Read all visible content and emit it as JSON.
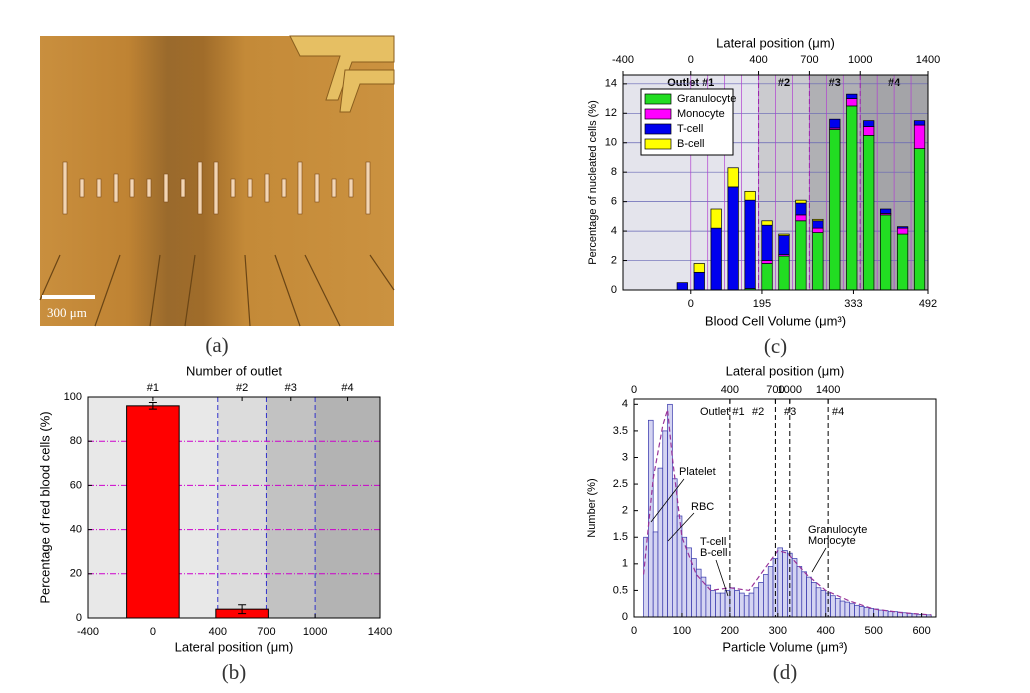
{
  "micrograph": {
    "scale_bar": "300 μm",
    "caption": "(a)"
  },
  "chart_data": [
    {
      "type": "bar",
      "caption": "(b)",
      "xlabel": "Lateral position (μm)",
      "ylabel": "Percentage of red blood cells (%)",
      "x2label": "Number of outlet",
      "x": [
        0,
        550
      ],
      "values": [
        96,
        4
      ],
      "errors": [
        1.5,
        2
      ],
      "color": "#ff0000",
      "xlim": [
        -400,
        1400
      ],
      "xticks": [
        -400,
        0,
        400,
        700,
        1000,
        1400
      ],
      "ylim": [
        0,
        100
      ],
      "yticks": [
        0,
        20,
        40,
        60,
        80,
        100
      ],
      "x2ticks": [
        {
          "value": 0,
          "label": "#1"
        },
        {
          "value": 550,
          "label": "#2"
        },
        {
          "value": 850,
          "label": "#3"
        },
        {
          "value": 1200,
          "label": "#4"
        }
      ],
      "regions": [
        {
          "from": -400,
          "to": 400,
          "color": "#e8e8e8"
        },
        {
          "from": 400,
          "to": 700,
          "color": "#dcdcdc"
        },
        {
          "from": 700,
          "to": 1000,
          "color": "#c2c2c2"
        },
        {
          "from": 1000,
          "to": 1400,
          "color": "#b3b3b3"
        }
      ],
      "grid": true
    },
    {
      "type": "stacked_bar",
      "caption": "(c)",
      "xlabel": "Blood Cell Volume (μm³)",
      "ylabel": "Percentage of nucleated cells (%)",
      "x2label": "Lateral position (μm)",
      "x": [
        -50,
        50,
        150,
        250,
        350,
        450,
        550,
        650,
        750,
        850,
        950,
        1050,
        1150,
        1250,
        1350
      ],
      "series": [
        {
          "name": "Granulocyte",
          "color": "#22dd22",
          "values": [
            0,
            0,
            0,
            0,
            0.1,
            1.8,
            2.3,
            4.7,
            3.9,
            10.9,
            12.5,
            10.5,
            5.1,
            3.8,
            9.6
          ]
        },
        {
          "name": "Monocyte",
          "color": "#ff00ff",
          "values": [
            0,
            0,
            0,
            0,
            0,
            0.2,
            0.1,
            0.4,
            0.3,
            0.1,
            0.5,
            0.6,
            0.1,
            0.4,
            1.6
          ]
        },
        {
          "name": "T-cell",
          "color": "#0000ee",
          "values": [
            0.5,
            1.2,
            4.2,
            7.0,
            6.0,
            2.4,
            1.3,
            0.8,
            0.5,
            0.6,
            0.3,
            0.4,
            0.3,
            0.1,
            0.3
          ]
        },
        {
          "name": "B-cell",
          "color": "#ffff00",
          "values": [
            0,
            0.6,
            1.3,
            1.3,
            0.6,
            0.3,
            0.1,
            0.2,
            0.1,
            0,
            0,
            0,
            0,
            0,
            0
          ]
        }
      ],
      "ylim": [
        0,
        14.6
      ],
      "yticks": [
        0,
        2,
        4,
        6,
        8,
        10,
        12,
        14
      ],
      "x2lim": [
        -400,
        1400
      ],
      "x2ticks": [
        -400,
        0,
        400,
        700,
        1000,
        1400
      ],
      "volume_ticks": [
        {
          "volume": 0,
          "lateral": 0
        },
        {
          "volume": 195,
          "lateral": 420
        },
        {
          "volume": 333,
          "lateral": 960
        },
        {
          "volume": 492,
          "lateral": 1400
        }
      ],
      "regions": [
        {
          "from": -400,
          "to": 400,
          "color": "#e4e4ec",
          "label": "Outlet #1"
        },
        {
          "from": 400,
          "to": 700,
          "color": "#cbcbcf",
          "label": "#2"
        },
        {
          "from": 700,
          "to": 1000,
          "color": "#b0b0b4",
          "label": "#3"
        },
        {
          "from": 1000,
          "to": 1400,
          "color": "#a4a4a8",
          "label": "#4"
        }
      ],
      "legend": "upper left",
      "grid": true
    },
    {
      "type": "histogram",
      "caption": "(d)",
      "xlabel": "Particle Volume (μm³)",
      "ylabel": "Number (%)",
      "x2label": "Lateral position (μm)",
      "bins": [
        20,
        30,
        40,
        50,
        60,
        70,
        80,
        90,
        100,
        110,
        120,
        130,
        140,
        150,
        160,
        170,
        180,
        190,
        200,
        210,
        220,
        230,
        240,
        250,
        260,
        270,
        280,
        290,
        300,
        310,
        320,
        330,
        340,
        350,
        360,
        370,
        380,
        390,
        400,
        410,
        420,
        430,
        440,
        450,
        460,
        470,
        480,
        490,
        500,
        510,
        520,
        530,
        540,
        550,
        560,
        570,
        580,
        590,
        600,
        610,
        620
      ],
      "counts": [
        1.5,
        3.7,
        1.6,
        2.8,
        3.5,
        4.0,
        2.6,
        1.9,
        1.5,
        1.3,
        1.1,
        0.9,
        0.75,
        0.6,
        0.5,
        0.45,
        0.45,
        0.5,
        0.55,
        0.5,
        0.45,
        0.4,
        0.45,
        0.55,
        0.65,
        0.8,
        0.95,
        1.1,
        1.3,
        1.25,
        1.2,
        1.1,
        0.95,
        0.85,
        0.75,
        0.65,
        0.55,
        0.5,
        0.45,
        0.4,
        0.35,
        0.3,
        0.28,
        0.25,
        0.22,
        0.2,
        0.18,
        0.16,
        0.15,
        0.13,
        0.12,
        0.1,
        0.1,
        0.09,
        0.08,
        0.07,
        0.06,
        0.05,
        0.05,
        0.04
      ],
      "color": "#3333aa",
      "fit": {
        "x": [
          20,
          40,
          60,
          70,
          80,
          100,
          130,
          160,
          200,
          240,
          280,
          300,
          320,
          360,
          400,
          450,
          500,
          560,
          620
        ],
        "values": [
          0.8,
          2.6,
          3.6,
          3.9,
          3.0,
          1.5,
          0.8,
          0.5,
          0.55,
          0.5,
          1.0,
          1.25,
          1.2,
          0.8,
          0.5,
          0.3,
          0.15,
          0.08,
          0.04
        ],
        "color": "#993399"
      },
      "xlim": [
        0,
        630
      ],
      "xticks": [
        0,
        100,
        200,
        300,
        400,
        500,
        600
      ],
      "ylim": [
        0,
        4.1
      ],
      "yticks": [
        0,
        0.5,
        1,
        1.5,
        2,
        2.5,
        3,
        3.5,
        4
      ],
      "lateral_ticks": [
        {
          "lateral": 0,
          "volume": 0
        },
        {
          "lateral": 400,
          "volume": 200
        },
        {
          "lateral": 700,
          "volume": 295
        },
        {
          "lateral": 1000,
          "volume": 325
        },
        {
          "lateral": 1400,
          "volume": 405
        }
      ],
      "annotations": [
        "Outlet #1",
        "#2",
        "#3",
        "#4",
        "Platelet",
        "RBC",
        "T-cell",
        "B-cell",
        "Granulocyte",
        "Monocyte"
      ]
    }
  ]
}
